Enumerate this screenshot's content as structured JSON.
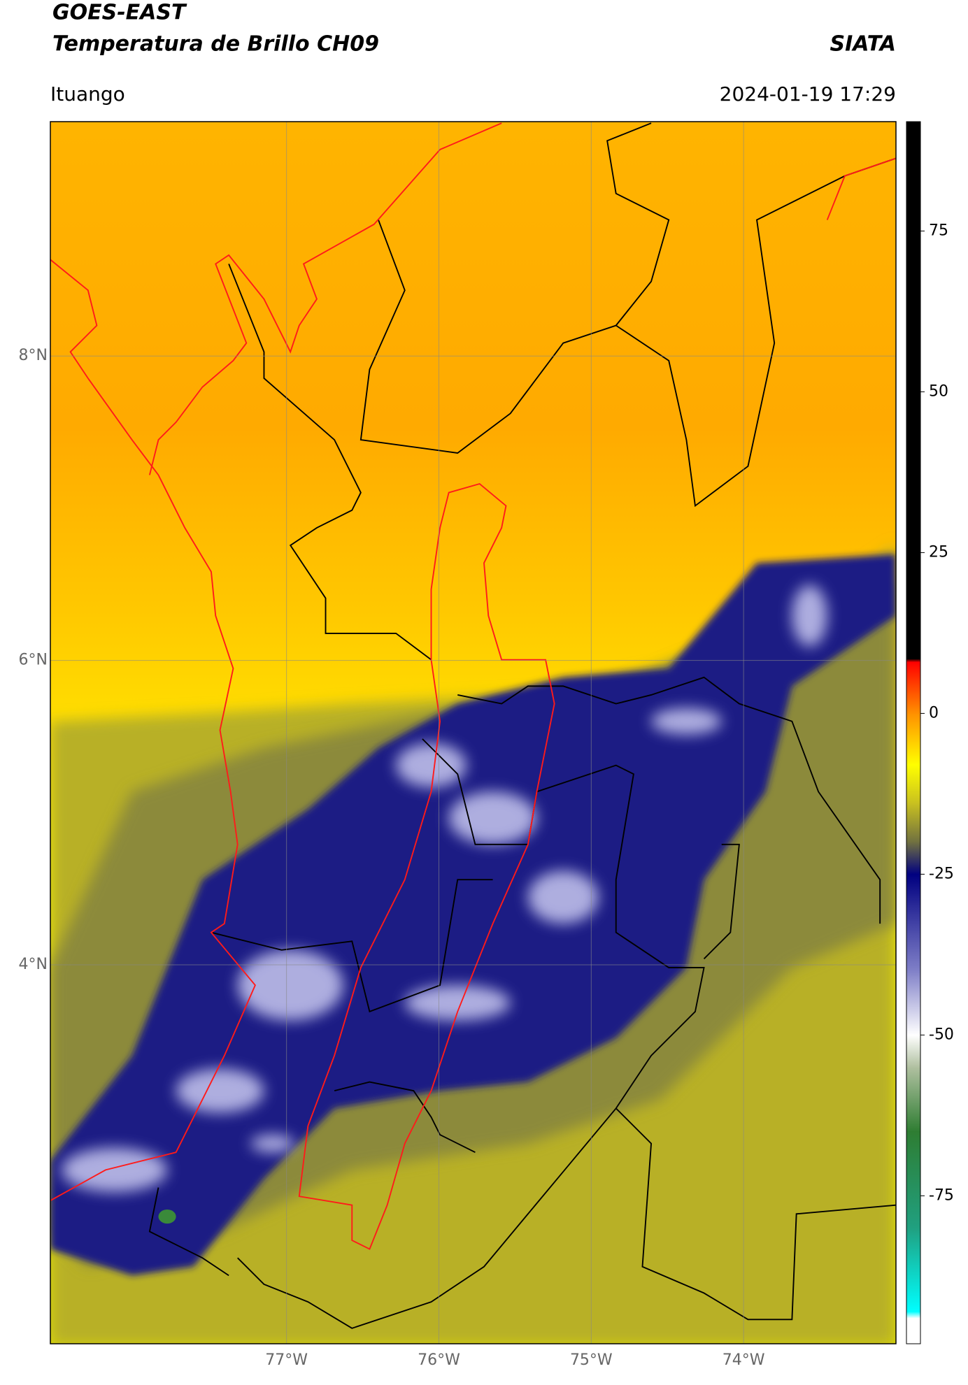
{
  "header": {
    "satellite": "GOES-EAST",
    "product": "Temperatura de Brillo CH09",
    "organization": "SIATA",
    "location": "Ituango",
    "timestamp": "2024-01-19 17:29"
  },
  "map": {
    "lat_lim": [
      1.51,
      9.54
    ],
    "lon_lim": [
      -78.55,
      -73.0
    ],
    "lat_ticks": [
      {
        "value": 8,
        "label": "8°N"
      },
      {
        "value": 6,
        "label": "6°N"
      },
      {
        "value": 4,
        "label": "4°N"
      }
    ],
    "lon_ticks": [
      {
        "value": -77,
        "label": "77°W"
      },
      {
        "value": -76,
        "label": "76°W"
      },
      {
        "value": -75,
        "label": "75°W"
      },
      {
        "value": -74,
        "label": "74°W"
      }
    ]
  },
  "colorbar": {
    "lim": [
      -98,
      92
    ],
    "ticks": [
      75,
      50,
      25,
      0,
      -25,
      -50,
      -75
    ],
    "colormap": [
      {
        "value": -98,
        "color": "#ffffff"
      },
      {
        "value": -94,
        "color": "#ffffff"
      },
      {
        "value": -93,
        "color": "#00ffff"
      },
      {
        "value": -80,
        "color": "#20a080"
      },
      {
        "value": -65,
        "color": "#2e7d32"
      },
      {
        "value": -55,
        "color": "#b0c0a0"
      },
      {
        "value": -50,
        "color": "#ffffff"
      },
      {
        "value": -40,
        "color": "#8080c8"
      },
      {
        "value": -25,
        "color": "#000080"
      },
      {
        "value": -20,
        "color": "#707040"
      },
      {
        "value": -14,
        "color": "#c8c020"
      },
      {
        "value": -8,
        "color": "#ffff00"
      },
      {
        "value": 0,
        "color": "#ff9000"
      },
      {
        "value": 8,
        "color": "#ff0000"
      },
      {
        "value": 8.5,
        "color": "#000000"
      },
      {
        "value": 92,
        "color": "#000000"
      }
    ]
  }
}
